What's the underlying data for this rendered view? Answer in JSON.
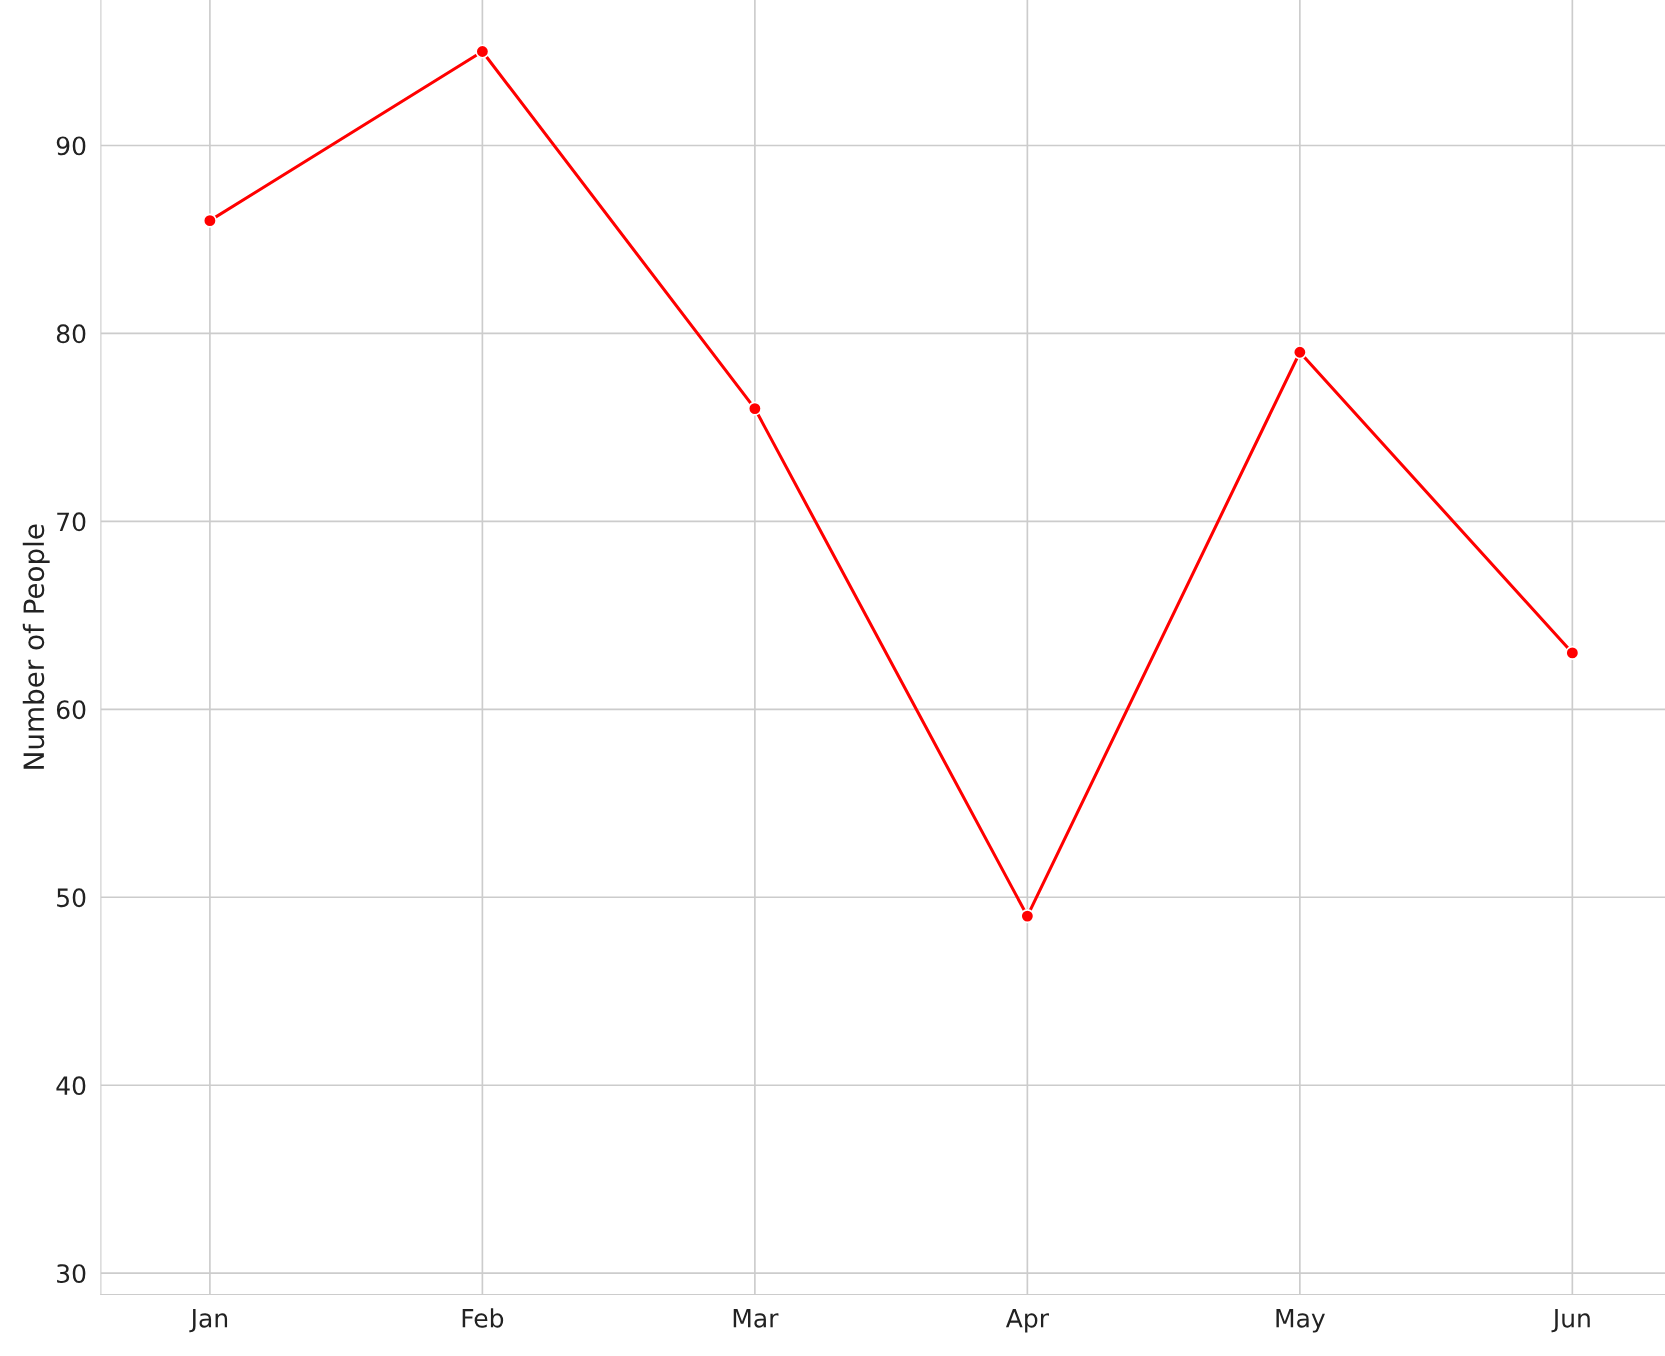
{
  "chart_data": {
    "type": "line",
    "ylabel": "Number of People",
    "categories": [
      "Jan",
      "Feb",
      "Mar",
      "Apr",
      "May",
      "Jun"
    ],
    "series": [
      {
        "color": "#ff0000",
        "values": [
          86,
          95,
          76,
          49,
          79,
          63
        ]
      }
    ],
    "ylim": [
      28.87,
      97.74
    ],
    "yticks": [
      30,
      40,
      50,
      60,
      70,
      80,
      90
    ],
    "grid": true,
    "marker": "circle",
    "line_style": "solid"
  }
}
